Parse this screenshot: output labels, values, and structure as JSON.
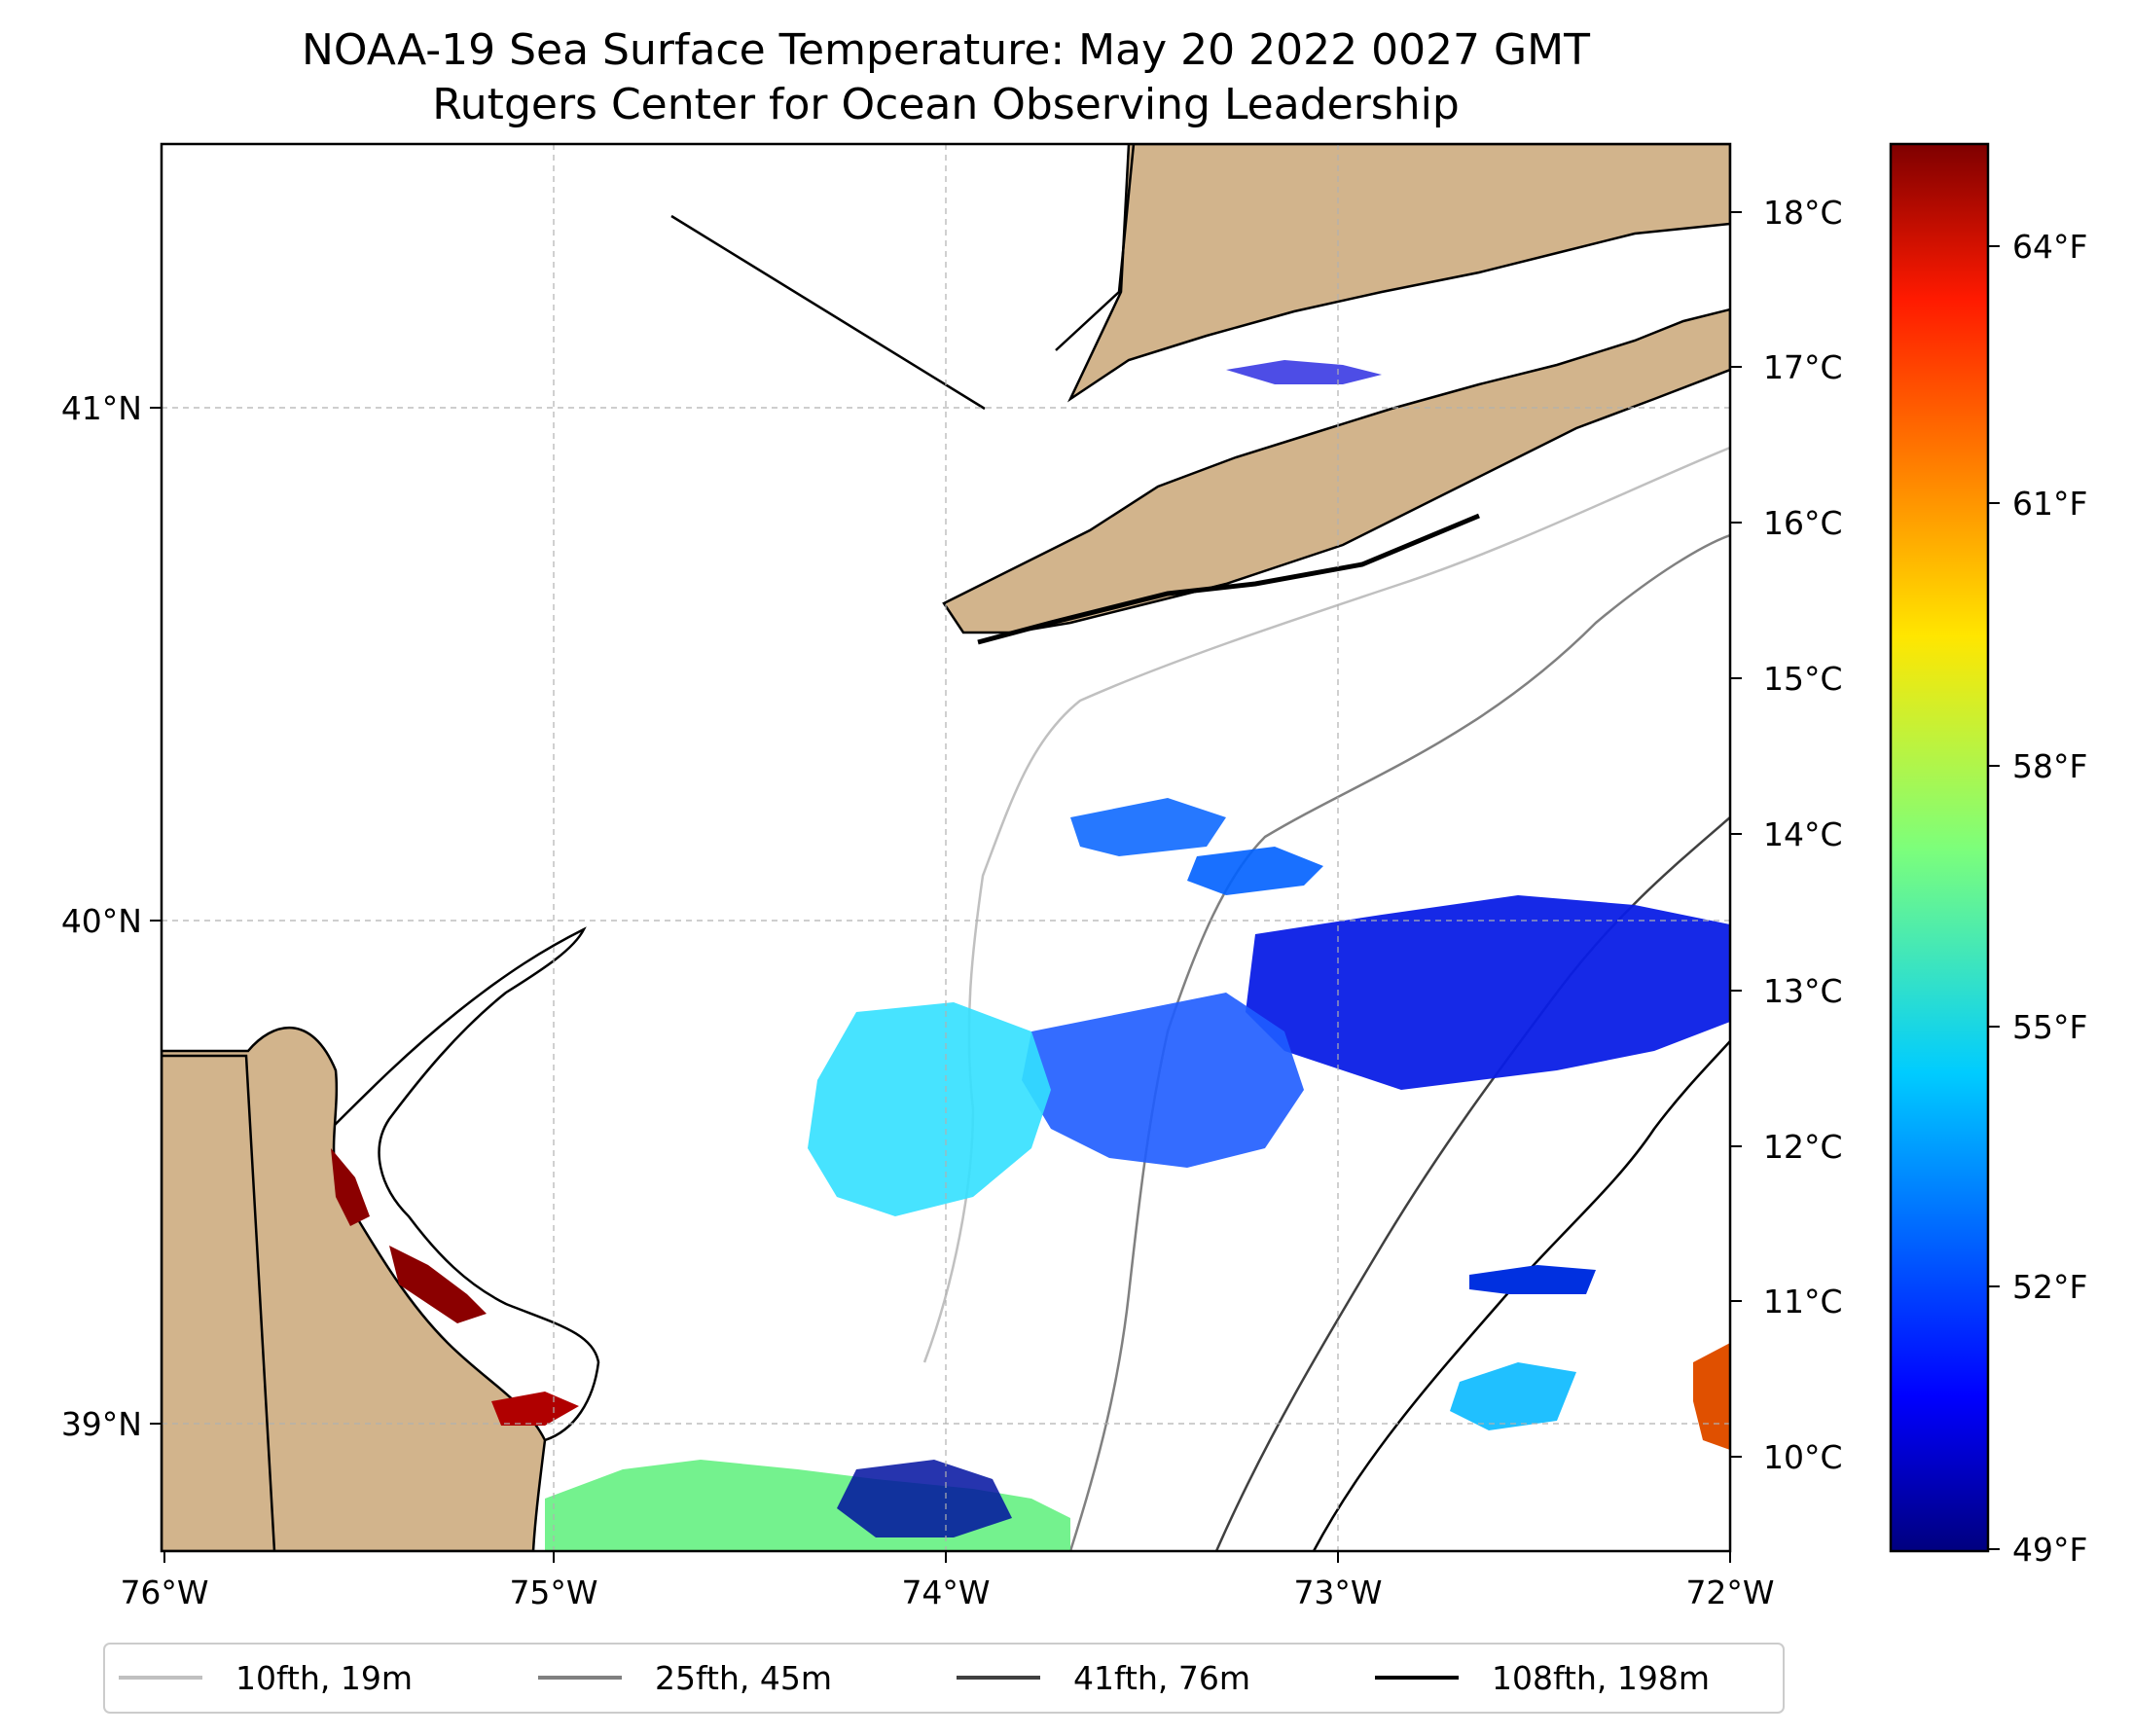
{
  "title": {
    "line1": "NOAA-19 Sea Surface Temperature: May 20 2022 0027 GMT",
    "line2": "Rutgers Center for Ocean Observing Leadership"
  },
  "map": {
    "extent": {
      "lon_min": -76,
      "lon_max": -72,
      "lat_min": 38.7,
      "lat_max": 41.5
    },
    "land_color": "#d2b48c",
    "ocean_color": "#ffffff",
    "x_ticks": [
      "76°W",
      "75°W",
      "74°W",
      "73°W",
      "72°W"
    ],
    "y_ticks": [
      "41°N",
      "40°N",
      "39°N"
    ]
  },
  "colorbar": {
    "colormap": "jet",
    "celsius_ticks": [
      "18°C",
      "17°C",
      "16°C",
      "15°C",
      "14°C",
      "13°C",
      "12°C",
      "11°C",
      "10°C"
    ],
    "fahrenheit_ticks": [
      "64°F",
      "61°F",
      "58°F",
      "55°F",
      "52°F",
      "49°F"
    ],
    "range_f": [
      48.9,
      65.3
    ]
  },
  "legend": {
    "items": [
      {
        "label": "10fth, 19m",
        "color": "#c0c0c0"
      },
      {
        "label": "25fth, 45m",
        "color": "#808080"
      },
      {
        "label": "41fth, 76m",
        "color": "#404040"
      },
      {
        "label": "108fth, 198m",
        "color": "#000000"
      }
    ]
  }
}
